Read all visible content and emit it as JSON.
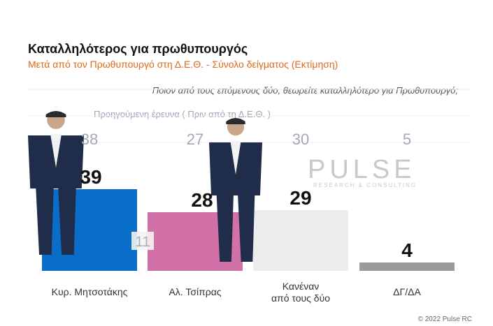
{
  "title": "Καταλληλότερος για πρωθυπουργός",
  "subtitle": "Μετά από τον Πρωθυπουργό στη Δ.Ε.Θ.  -  Σύνολο δείγματος   (Εκτίμηση)",
  "question": "Ποιον από τους επόμενους δύο, θεωρείτε καταλληλότερο για Πρωθυπουργό;",
  "previous_label": "Προηγούμενη έρευνα  (  Πριν από τη Δ.Ε.Θ. )",
  "copyright": "© 2022 Pulse RC",
  "watermark": {
    "name": "PULSE",
    "tagline": "RESEARCH & CONSULTING"
  },
  "chart_data": {
    "type": "bar",
    "categories": [
      "Κυρ. Μητσοτάκης",
      "Αλ. Τσίπρας",
      "Κανέναν από τους δύο",
      "ΔΓ/ΔΑ"
    ],
    "category_lines": [
      [
        "Κυρ. Μητσοτάκης"
      ],
      [
        "Αλ. Τσίπρας"
      ],
      [
        "Κανέναν",
        "από τους δύο"
      ],
      [
        "ΔΓ/ΔΑ"
      ]
    ],
    "values": [
      39,
      28,
      29,
      4
    ],
    "previous_values": [
      38,
      27,
      30,
      5
    ],
    "colors": [
      "#0a6ec9",
      "#d271a8",
      "#ececec",
      "#9b9b9b"
    ],
    "gap_annotation": "11",
    "ylim": [
      0,
      45
    ],
    "grid": true
  }
}
